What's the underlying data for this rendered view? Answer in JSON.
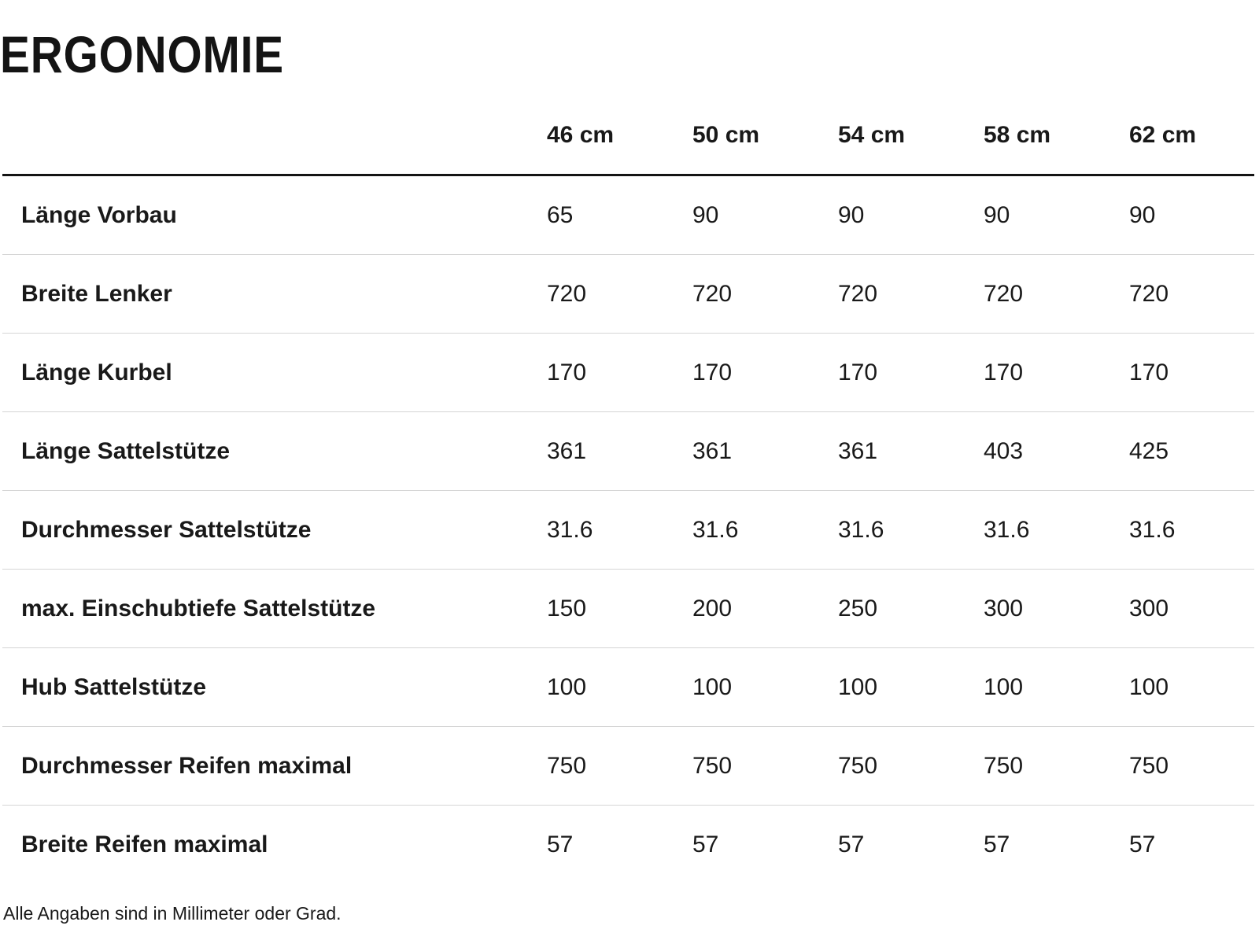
{
  "title": "ERGONOMIE",
  "table": {
    "columns": [
      "46 cm",
      "50 cm",
      "54 cm",
      "58 cm",
      "62 cm"
    ],
    "rows": [
      {
        "label": "Länge Vorbau",
        "values": [
          "65",
          "90",
          "90",
          "90",
          "90"
        ]
      },
      {
        "label": "Breite Lenker",
        "values": [
          "720",
          "720",
          "720",
          "720",
          "720"
        ]
      },
      {
        "label": "Länge Kurbel",
        "values": [
          "170",
          "170",
          "170",
          "170",
          "170"
        ]
      },
      {
        "label": "Länge Sattelstütze",
        "values": [
          "361",
          "361",
          "361",
          "403",
          "425"
        ]
      },
      {
        "label": "Durchmesser Sattelstütze",
        "values": [
          "31.6",
          "31.6",
          "31.6",
          "31.6",
          "31.6"
        ]
      },
      {
        "label": "max. Einschubtiefe Sattelstütze",
        "values": [
          "150",
          "200",
          "250",
          "300",
          "300"
        ]
      },
      {
        "label": "Hub Sattelstütze",
        "values": [
          "100",
          "100",
          "100",
          "100",
          "100"
        ]
      },
      {
        "label": "Durchmesser Reifen maximal",
        "values": [
          "750",
          "750",
          "750",
          "750",
          "750"
        ]
      },
      {
        "label": "Breite Reifen maximal",
        "values": [
          "57",
          "57",
          "57",
          "57",
          "57"
        ]
      }
    ]
  },
  "footnote": "Alle Angaben sind in Millimeter oder Grad.",
  "colors": {
    "background": "#ffffff",
    "text": "#191919",
    "header_rule": "#141414",
    "row_divider": "#d5d5d5"
  }
}
